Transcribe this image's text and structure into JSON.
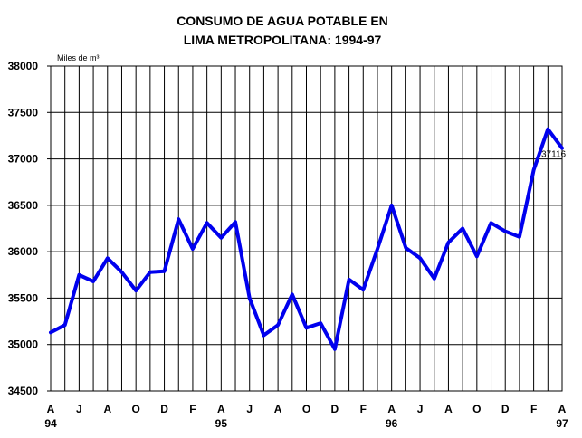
{
  "chart_data": {
    "type": "line",
    "title_line1": "CONSUMO DE AGUA POTABLE EN",
    "title_line2": "LIMA METROPOLITANA: 1994-97",
    "ylabel": "Miles de m³",
    "ylim": [
      34500,
      38000
    ],
    "y_ticks": [
      "38000",
      "37500",
      "37000",
      "36500",
      "36000",
      "35500",
      "35000",
      "34500"
    ],
    "x_tick_labels": [
      "A",
      "J",
      "A",
      "O",
      "D",
      "F",
      "A",
      "J",
      "A",
      "O",
      "D",
      "F",
      "A",
      "J",
      "A",
      "O",
      "D",
      "F",
      "A"
    ],
    "year_labels": [
      "94",
      "95",
      "96",
      "97"
    ],
    "grid": true,
    "series_color": "#0000ee",
    "series": [
      {
        "values": [
          35130,
          35210,
          35750,
          35680,
          35930,
          35780,
          35580,
          35780,
          35790,
          36350,
          36030,
          36310,
          36150,
          36320,
          35500,
          35100,
          35210,
          35540,
          35180,
          35230,
          34950,
          35700,
          35590,
          36030,
          36500,
          36040,
          35930,
          35710,
          36100,
          36250,
          35950,
          36310,
          36220,
          36160,
          36880,
          37320,
          37116
        ]
      }
    ],
    "last_value_label": "37116"
  }
}
